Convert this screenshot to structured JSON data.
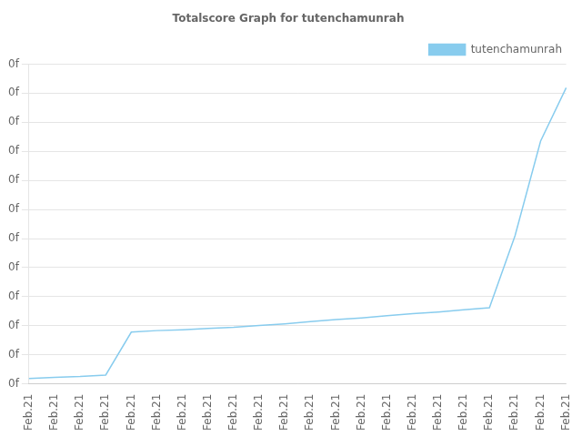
{
  "chart_data": {
    "type": "line",
    "title": "Totalscore Graph for tutenchamunrah",
    "categories": [
      "Feb.21",
      "Feb.21",
      "Feb.21",
      "Feb.21",
      "Feb.21",
      "Feb.21",
      "Feb.21",
      "Feb.21",
      "Feb.21",
      "Feb.21",
      "Feb.21",
      "Feb.21",
      "Feb.21",
      "Feb.21",
      "Feb.21",
      "Feb.21",
      "Feb.21",
      "Feb.21",
      "Feb.21",
      "Feb.21",
      "Feb.21",
      "Feb.21"
    ],
    "series": [
      {
        "name": "tutenchamunrah",
        "color": "#88ccee",
        "values": [
          0.018,
          0.022,
          0.025,
          0.03,
          0.175,
          0.18,
          0.183,
          0.187,
          0.191,
          0.197,
          0.203,
          0.21,
          0.217,
          0.223,
          0.23,
          0.237,
          0.243,
          0.25,
          0.257,
          0.5,
          0.82,
          1.0
        ]
      }
    ],
    "ylim": [
      0,
      1.08
    ],
    "yticks": [
      {
        "value": 0,
        "label": "0f"
      },
      {
        "value": 0.09818181818181818,
        "label": "0f"
      },
      {
        "value": 0.19636363636363635,
        "label": "0f"
      },
      {
        "value": 0.29454545454545455,
        "label": "0f"
      },
      {
        "value": 0.3927272727272727,
        "label": "0f"
      },
      {
        "value": 0.4909090909090909,
        "label": "0f"
      },
      {
        "value": 0.5890909090909091,
        "label": "0f"
      },
      {
        "value": 0.6872727272727273,
        "label": "0f"
      },
      {
        "value": 0.7854545454545454,
        "label": "0f"
      },
      {
        "value": 0.8836363636363636,
        "label": "0f"
      },
      {
        "value": 0.9818181818181818,
        "label": "0f"
      },
      {
        "value": 1.08,
        "label": "0f"
      }
    ],
    "grid": true,
    "legend": "upper right"
  }
}
